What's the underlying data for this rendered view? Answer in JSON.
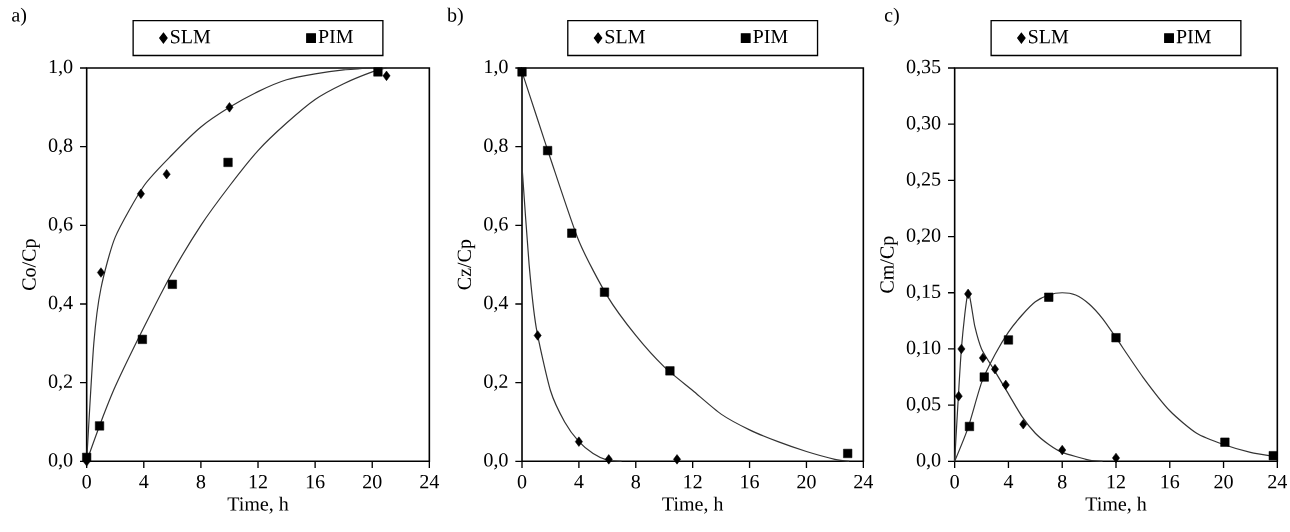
{
  "chart_data": [
    {
      "type": "scatter",
      "title": "a)",
      "xlabel": "Time, h",
      "ylabel": "Co/Cp",
      "xlim": [
        0,
        24
      ],
      "ylim": [
        0,
        1
      ],
      "xticks": [
        0,
        4,
        8,
        12,
        16,
        20,
        24
      ],
      "yticks": [
        {
          "value": 0,
          "label": "0,0"
        },
        {
          "value": 0.2,
          "label": "0,2"
        },
        {
          "value": 0.4,
          "label": "0,4"
        },
        {
          "value": 0.6,
          "label": "0,6"
        },
        {
          "value": 0.8,
          "label": "0,8"
        },
        {
          "value": 1,
          "label": "1,0"
        }
      ],
      "legend": "top",
      "series": [
        {
          "type": "line",
          "color": "#333333",
          "marker": "none",
          "x": [
            0,
            0.5,
            1,
            2,
            4,
            6,
            8,
            10,
            12,
            14,
            16,
            18,
            20
          ],
          "values": [
            0,
            0.3,
            0.44,
            0.57,
            0.7,
            0.78,
            0.85,
            0.9,
            0.94,
            0.97,
            0.985,
            0.995,
            1.0
          ]
        },
        {
          "type": "line",
          "color": "#333333",
          "marker": "none",
          "x": [
            0,
            1,
            2,
            4,
            6,
            8,
            10,
            12,
            14,
            16,
            18,
            20,
            21
          ],
          "values": [
            0,
            0.1,
            0.19,
            0.34,
            0.48,
            0.6,
            0.7,
            0.79,
            0.86,
            0.92,
            0.96,
            0.99,
            1.0
          ]
        },
        {
          "name": "SLM",
          "color": "#000000",
          "marker": "diamond",
          "x": [
            0,
            1,
            3.8,
            5.6,
            10,
            21
          ],
          "values": [
            0,
            0.48,
            0.68,
            0.73,
            0.9,
            0.98
          ]
        },
        {
          "name": "PIM",
          "color": "#000000",
          "marker": "square",
          "x": [
            0,
            0.9,
            3.9,
            6,
            9.9,
            20.4
          ],
          "values": [
            0.01,
            0.09,
            0.31,
            0.45,
            0.76,
            0.99
          ]
        }
      ]
    },
    {
      "type": "scatter",
      "title": "b)",
      "xlabel": "Time, h",
      "ylabel": "Cz/Cp",
      "xlim": [
        0,
        24
      ],
      "ylim": [
        0,
        1
      ],
      "xticks": [
        0,
        4,
        8,
        12,
        16,
        20,
        24
      ],
      "yticks": [
        {
          "value": 0,
          "label": "0,0"
        },
        {
          "value": 0.2,
          "label": "0,2"
        },
        {
          "value": 0.4,
          "label": "0,4"
        },
        {
          "value": 0.6,
          "label": "0,6"
        },
        {
          "value": 0.8,
          "label": "0,8"
        },
        {
          "value": 1,
          "label": "1,0"
        }
      ],
      "legend": "top",
      "series": [
        {
          "type": "line",
          "color": "#333333",
          "marker": "none",
          "x": [
            0,
            0.5,
            1,
            2,
            3,
            4,
            5,
            6,
            7
          ],
          "values": [
            0.75,
            0.5,
            0.34,
            0.18,
            0.1,
            0.05,
            0.02,
            0.003,
            0
          ]
        },
        {
          "type": "line",
          "color": "#333333",
          "marker": "none",
          "x": [
            0,
            1,
            2,
            4,
            6,
            8,
            10,
            12,
            14,
            16,
            18,
            20,
            22,
            23
          ],
          "values": [
            0.99,
            0.88,
            0.77,
            0.56,
            0.42,
            0.32,
            0.24,
            0.18,
            0.12,
            0.08,
            0.05,
            0.025,
            0.005,
            0
          ]
        },
        {
          "name": "SLM",
          "color": "#000000",
          "marker": "diamond",
          "x": [
            1.1,
            4,
            6.1,
            10.9
          ],
          "values": [
            0.32,
            0.05,
            0.005,
            0.005
          ]
        },
        {
          "name": "PIM",
          "color": "#000000",
          "marker": "square",
          "x": [
            0,
            1.8,
            3.5,
            5.8,
            10.4,
            22.9
          ],
          "values": [
            0.99,
            0.79,
            0.58,
            0.43,
            0.23,
            0.02
          ]
        }
      ]
    },
    {
      "type": "scatter",
      "title": "c)",
      "xlabel": "Time, h",
      "ylabel": "Cm/Cp",
      "xlim": [
        0,
        24
      ],
      "ylim": [
        0,
        0.35
      ],
      "xticks": [
        0,
        4,
        8,
        12,
        16,
        20,
        24
      ],
      "yticks": [
        {
          "value": 0,
          "label": "0,0"
        },
        {
          "value": 0.05,
          "label": "0,05"
        },
        {
          "value": 0.1,
          "label": "0,10"
        },
        {
          "value": 0.15,
          "label": "0,15"
        },
        {
          "value": 0.2,
          "label": "0,20"
        },
        {
          "value": 0.25,
          "label": "0,25"
        },
        {
          "value": 0.3,
          "label": "0,30"
        },
        {
          "value": 0.35,
          "label": "0,35"
        }
      ],
      "legend": "top",
      "series": [
        {
          "type": "line",
          "color": "#333333",
          "marker": "none",
          "x": [
            0,
            0.5,
            1,
            1.5,
            2,
            3,
            4,
            5,
            6,
            7,
            8,
            10,
            11
          ],
          "values": [
            0,
            0.1,
            0.15,
            0.12,
            0.1,
            0.08,
            0.06,
            0.04,
            0.025,
            0.015,
            0.008,
            0.001,
            0
          ]
        },
        {
          "type": "line",
          "color": "#333333",
          "marker": "none",
          "x": [
            0,
            1,
            2,
            3,
            4,
            5,
            6,
            7,
            8,
            9,
            10,
            11,
            12,
            14,
            16,
            18,
            20,
            22,
            24
          ],
          "values": [
            0,
            0.03,
            0.07,
            0.095,
            0.115,
            0.13,
            0.142,
            0.148,
            0.15,
            0.148,
            0.14,
            0.127,
            0.11,
            0.075,
            0.045,
            0.025,
            0.015,
            0.008,
            0.004
          ]
        },
        {
          "name": "SLM",
          "color": "#000000",
          "marker": "diamond",
          "x": [
            0.3,
            0.5,
            1,
            2.1,
            3,
            3.8,
            5.1,
            8,
            12
          ],
          "values": [
            0.058,
            0.1,
            0.149,
            0.092,
            0.082,
            0.068,
            0.033,
            0.01,
            0.003
          ]
        },
        {
          "name": "PIM",
          "color": "#000000",
          "marker": "square",
          "x": [
            1.1,
            2.2,
            4,
            7,
            12,
            20.1,
            23.7
          ],
          "values": [
            0.031,
            0.075,
            0.108,
            0.146,
            0.11,
            0.017,
            0.005
          ]
        }
      ]
    }
  ]
}
